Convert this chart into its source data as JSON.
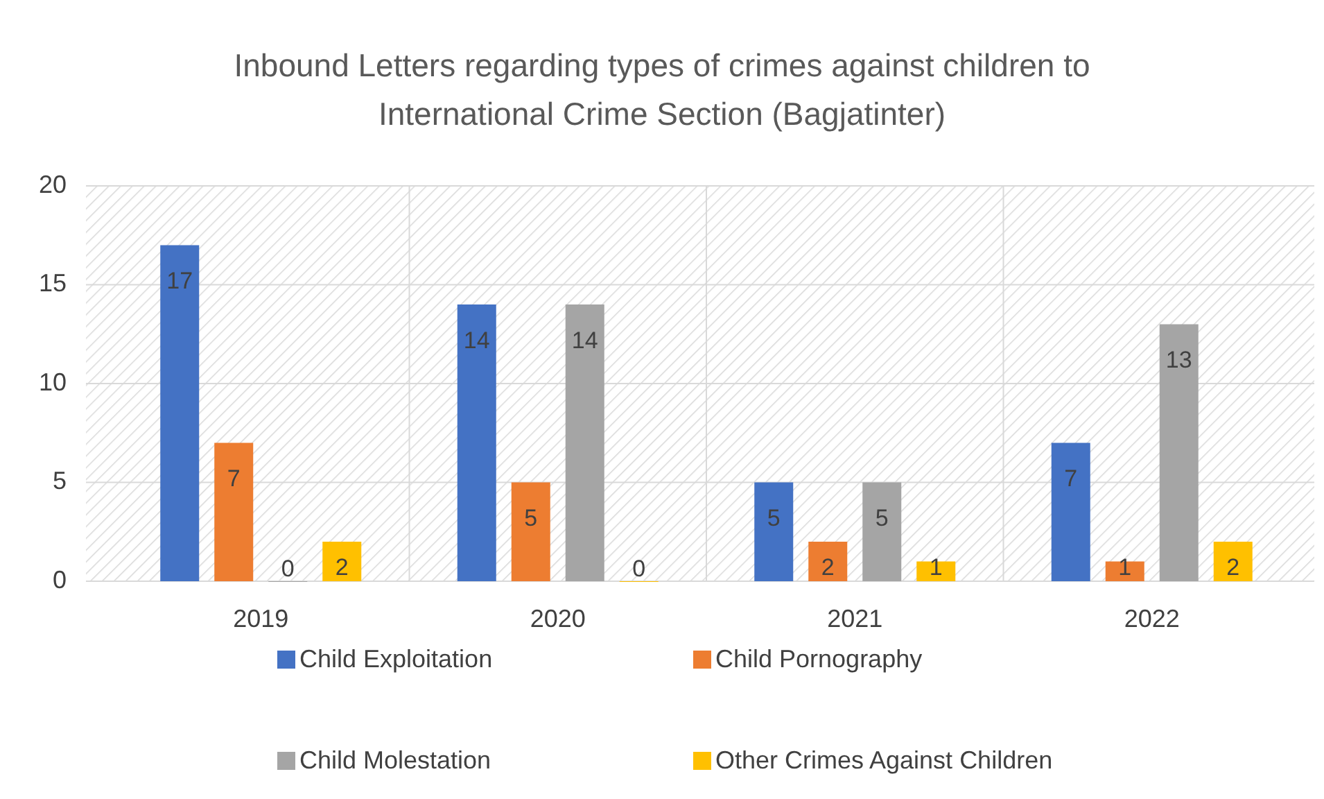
{
  "chart_data": {
    "type": "bar",
    "title": "Inbound Letters regarding types of crimes against children to International Crime Section (Bagjatinter)",
    "categories": [
      "2019",
      "2020",
      "2021",
      "2022"
    ],
    "series": [
      {
        "name": "Child Exploitation",
        "color": "#4472c4",
        "values": [
          17,
          14,
          5,
          7
        ]
      },
      {
        "name": "Child Pornography",
        "color": "#ed7d31",
        "values": [
          7,
          5,
          2,
          1
        ]
      },
      {
        "name": "Child Molestation",
        "color": "#a5a5a5",
        "values": [
          0,
          14,
          5,
          13
        ]
      },
      {
        "name": "Other Crimes Against Children",
        "color": "#ffc000",
        "values": [
          2,
          0,
          1,
          2
        ]
      }
    ],
    "ylim": [
      0,
      20
    ],
    "yticks": [
      0,
      5,
      10,
      15,
      20
    ],
    "grid": true,
    "legend": "bottom",
    "data_labels": true
  }
}
